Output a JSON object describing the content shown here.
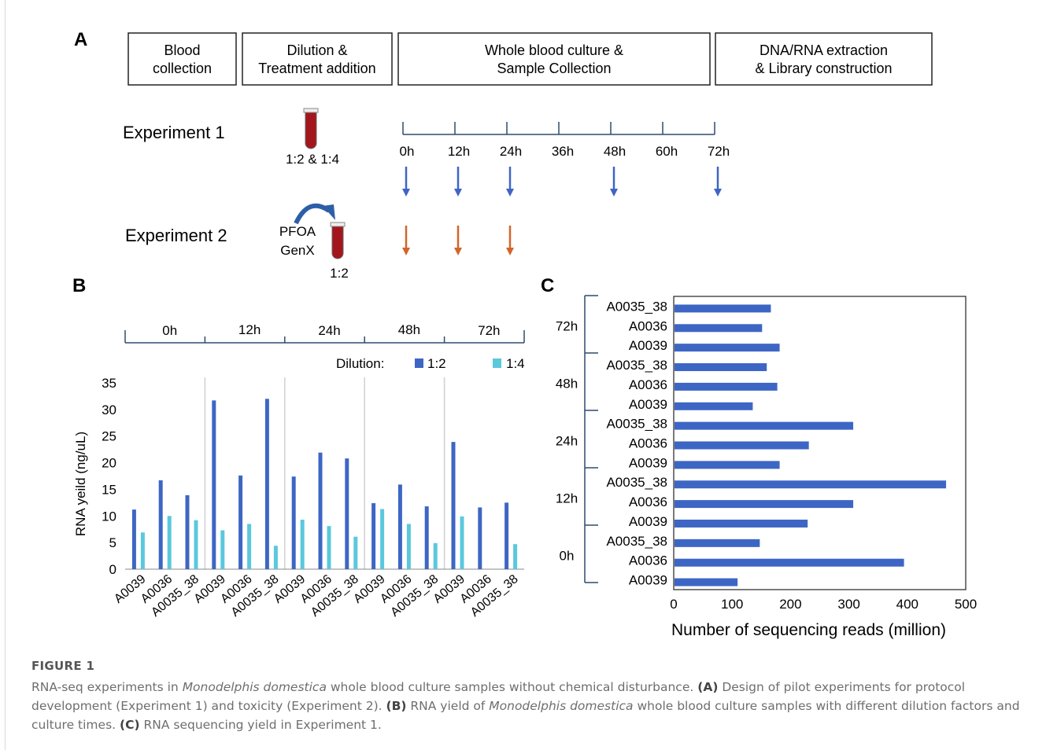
{
  "panel_a": {
    "label": "A",
    "boxes": [
      "Blood|collection",
      "Dilution &|Treatment addition",
      "Whole blood culture &|Sample Collection",
      "DNA/RNA extraction|& Library construction"
    ],
    "experiment1": {
      "title": "Experiment 1",
      "dilution": "1:2 & 1:4"
    },
    "experiment2": {
      "title": "Experiment 2",
      "treat1": "PFOA",
      "treat2": "GenX",
      "dilution": "1:2"
    },
    "timeline": [
      "0h",
      "12h",
      "24h",
      "36h",
      "48h",
      "60h",
      "72h"
    ],
    "exp1_sampled": [
      "0h",
      "12h",
      "24h",
      "48h",
      "72h"
    ],
    "exp2_sampled": [
      "0h",
      "12h",
      "24h"
    ],
    "colors": {
      "exp1_arrow": "#3d66c4",
      "exp2_arrow": "#d2652a",
      "tube": "#a3171c"
    }
  },
  "chart_data": [
    {
      "panel": "B",
      "type": "bar",
      "groups": [
        "0h",
        "12h",
        "24h",
        "48h",
        "72h"
      ],
      "categories": [
        "A0039",
        "A0036",
        "A0035_38",
        "A0039",
        "A0036",
        "A0035_38",
        "A0039",
        "A0036",
        "A0035_38",
        "A0039",
        "A0036",
        "A0035_38",
        "A0039",
        "A0036",
        "A0035_38"
      ],
      "legend_title": "Dilution:",
      "legend_position": "top-right",
      "series": [
        {
          "name": "1:2",
          "color": "#3d66c4",
          "values": [
            11.2,
            16.7,
            13.9,
            31.7,
            17.6,
            32.0,
            17.4,
            21.9,
            20.8,
            12.4,
            15.9,
            11.8,
            23.9,
            11.6,
            12.5
          ]
        },
        {
          "name": "1:4",
          "color": "#5bc8dc",
          "values": [
            6.9,
            10.0,
            9.2,
            7.3,
            8.5,
            4.4,
            9.3,
            8.1,
            6.1,
            11.3,
            8.5,
            4.9,
            9.9,
            0,
            4.7
          ]
        }
      ],
      "ylabel": "RNA yeild (ng/uL)",
      "ylim": [
        0,
        35
      ],
      "yticks": [
        0,
        5,
        10,
        15,
        20,
        25,
        30,
        35
      ]
    },
    {
      "panel": "C",
      "type": "bar",
      "orientation": "horizontal",
      "groups": [
        "72h",
        "48h",
        "24h",
        "12h",
        "0h"
      ],
      "categories": [
        "A0035_38",
        "A0036",
        "A0039",
        "A0035_38",
        "A0036",
        "A0039",
        "A0035_38",
        "A0036",
        "A0039",
        "A0035_38",
        "A0036",
        "A0039",
        "A0035_38",
        "A0036",
        "A0039"
      ],
      "values": [
        165,
        150,
        180,
        158,
        176,
        134,
        306,
        230,
        180,
        465,
        306,
        228,
        146,
        393,
        108
      ],
      "color": "#3d66c4",
      "xlabel": "Number of sequencing reads (million)",
      "xlim": [
        0,
        500
      ],
      "xticks": [
        0,
        100,
        200,
        300,
        400,
        500
      ]
    }
  ],
  "caption": {
    "label": "FIGURE 1",
    "text": "RNA-seq experiments in Monodelphis domestica whole blood culture samples without chemical disturbance. (A) Design of pilot experiments for protocol development (Experiment 1) and toxicity (Experiment 2). (B) RNA yield of Monodelphis domestica whole blood culture samples with different dilution factors and culture times. (C) RNA sequencing yield in Experiment 1."
  }
}
